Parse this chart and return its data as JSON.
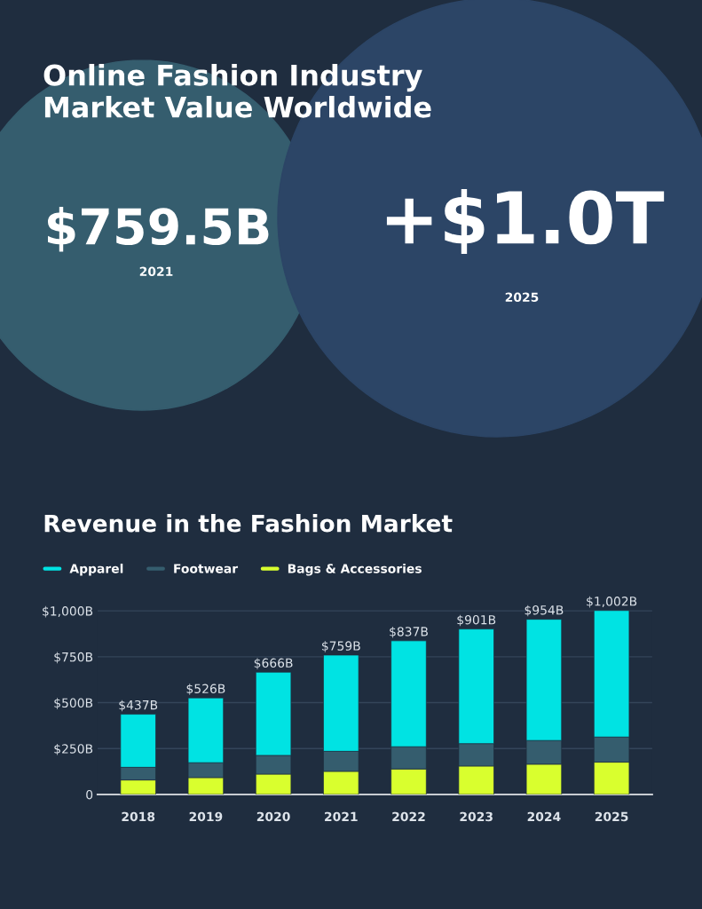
{
  "chart_data": [
    {
      "type": "other",
      "title": "Online Fashion Industry\nMarket Value Worldwide",
      "annotations": [
        "$759.5B",
        "2021",
        "+$1.0T",
        "2025"
      ]
    },
    {
      "type": "bar",
      "title": "Revenue in the Fashion Market",
      "categories": [
        "2018",
        "2019",
        "2020",
        "2021",
        "2022",
        "2023",
        "2024",
        "2025"
      ],
      "stacked": true,
      "series": [
        {
          "name": "Bags & Accessories",
          "color": "#d9ff2e",
          "values": [
            79,
            92,
            111,
            126,
            139,
            155,
            165,
            176
          ]
        },
        {
          "name": "Footwear",
          "color": "#355d6e",
          "values": [
            69,
            81,
            102,
            109,
            121,
            122,
            129,
            137
          ]
        },
        {
          "name": "Apparel",
          "color": "#00e3e3",
          "values": [
            289,
            353,
            453,
            524,
            577,
            624,
            660,
            689
          ]
        }
      ],
      "totals": [
        "$437B",
        "$526B",
        "$666B",
        "$759B",
        "$837B",
        "$901B",
        "$954B",
        "$1,002B"
      ],
      "ylim": [
        0,
        1010
      ],
      "yticks": [
        0,
        {
          "value": 250,
          "label": "$250B"
        },
        {
          "value": 500,
          "label": "$500B"
        },
        {
          "value": 750,
          "label": "$750B"
        },
        {
          "value": 1000,
          "label": "$1,000B"
        }
      ],
      "grid": "y",
      "legend": "top left"
    }
  ]
}
